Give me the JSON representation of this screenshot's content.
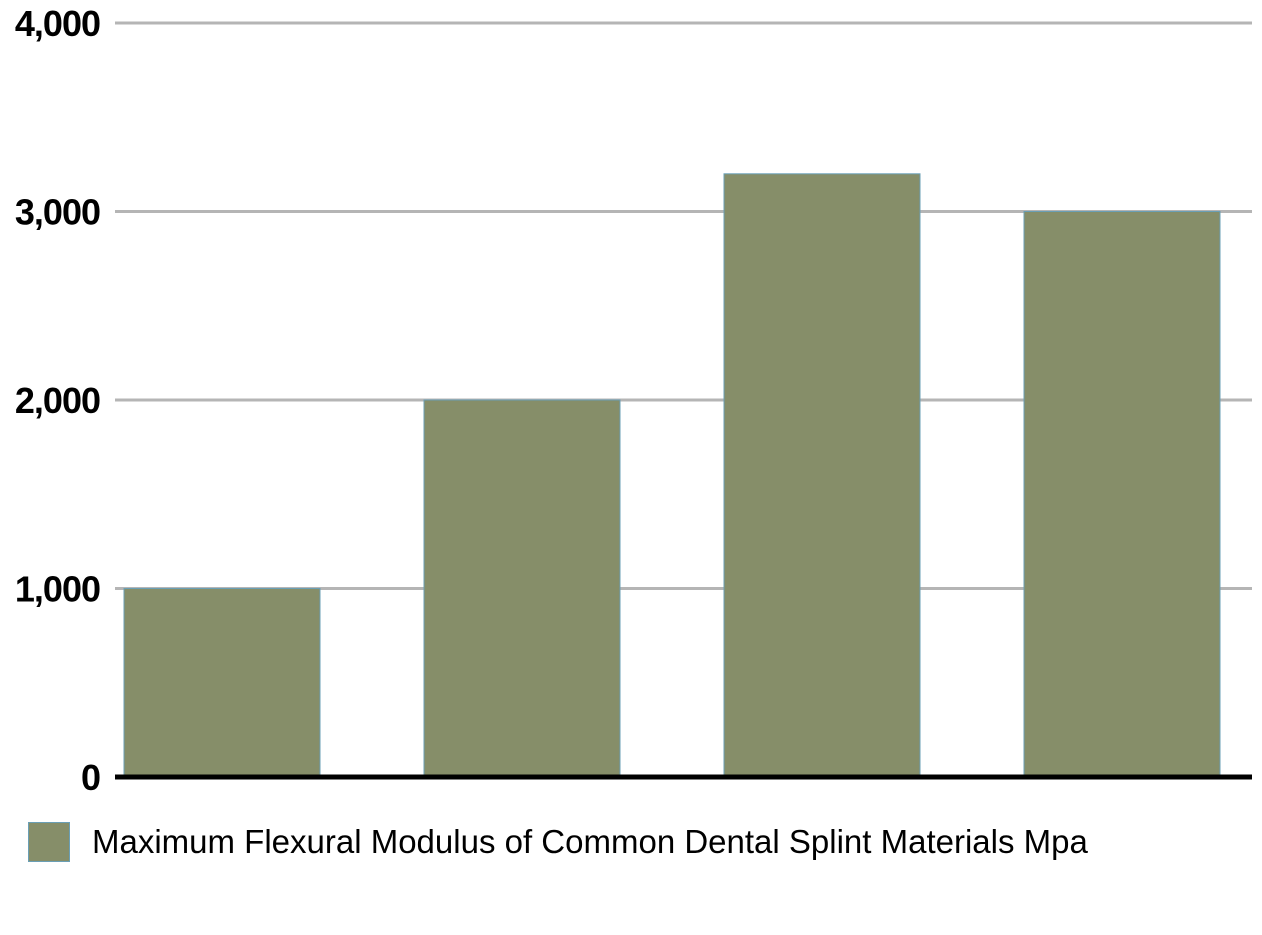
{
  "chart_data": {
    "type": "bar",
    "title": "",
    "xlabel": "",
    "ylabel": "",
    "categories": [
      "",
      "",
      "",
      ""
    ],
    "series": [
      {
        "name": "Maximum Flexural Modulus of Common Dental Splint Materials Mpa",
        "values": [
          1000,
          2000,
          3200,
          3000
        ],
        "color": "#868e69"
      }
    ],
    "ylim": [
      0,
      4000
    ],
    "yticks": [
      0,
      1000,
      2000,
      3000,
      4000
    ],
    "ytick_labels": [
      "0",
      "1,000",
      "2,000",
      "3,000",
      "4,000"
    ],
    "grid": true,
    "legend_position": "bottom-left"
  },
  "colors": {
    "bar": "#868e69",
    "bar_edge": "#6a9fb5",
    "grid": "#b5b5b5",
    "axis": "#000000"
  }
}
